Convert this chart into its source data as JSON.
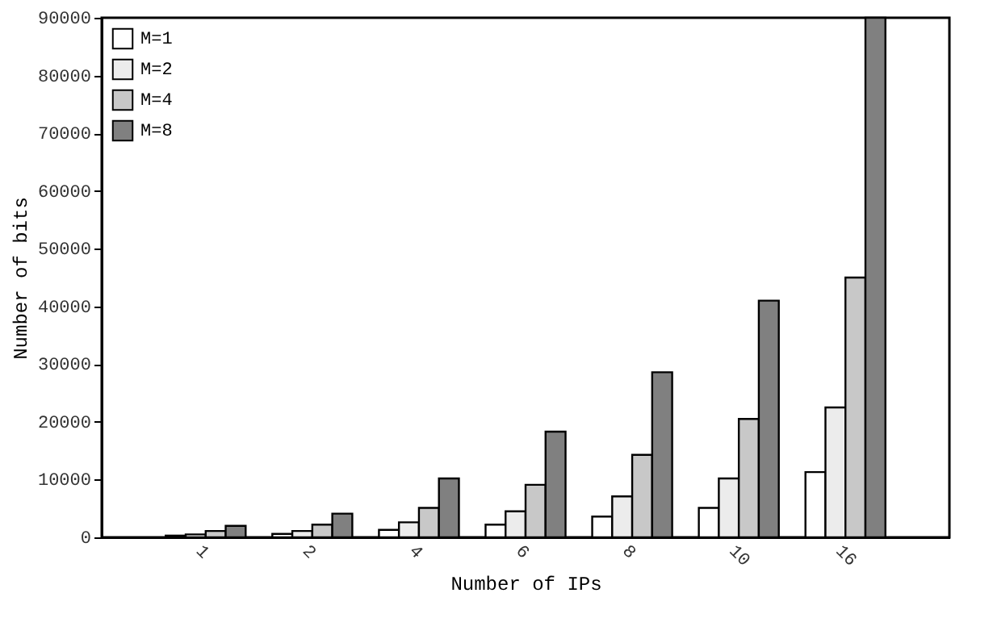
{
  "chart_data": {
    "type": "bar",
    "xlabel": "Number of IPs",
    "ylabel": "Number of bits",
    "categories": [
      "1",
      "2",
      "4",
      "6",
      "8",
      "10",
      "16"
    ],
    "series": [
      {
        "name": "M=1",
        "color": "#ffffff",
        "values": [
          300,
          600,
          1300,
          2200,
          3600,
          5100,
          11300
        ]
      },
      {
        "name": "M=2",
        "color": "#ececec",
        "values": [
          500,
          1100,
          2600,
          4500,
          7100,
          10200,
          22500
        ]
      },
      {
        "name": "M=4",
        "color": "#c8c8c8",
        "values": [
          1100,
          2200,
          5100,
          9100,
          14300,
          20500,
          45000
        ]
      },
      {
        "name": "M=8",
        "color": "#808080",
        "values": [
          2000,
          4100,
          10200,
          18300,
          28600,
          41000,
          90000
        ]
      }
    ],
    "ylim": [
      0,
      90000
    ],
    "yticks": [
      0,
      10000,
      20000,
      30000,
      40000,
      50000,
      60000,
      70000,
      80000,
      90000
    ],
    "grid": false,
    "legend": "top left"
  }
}
